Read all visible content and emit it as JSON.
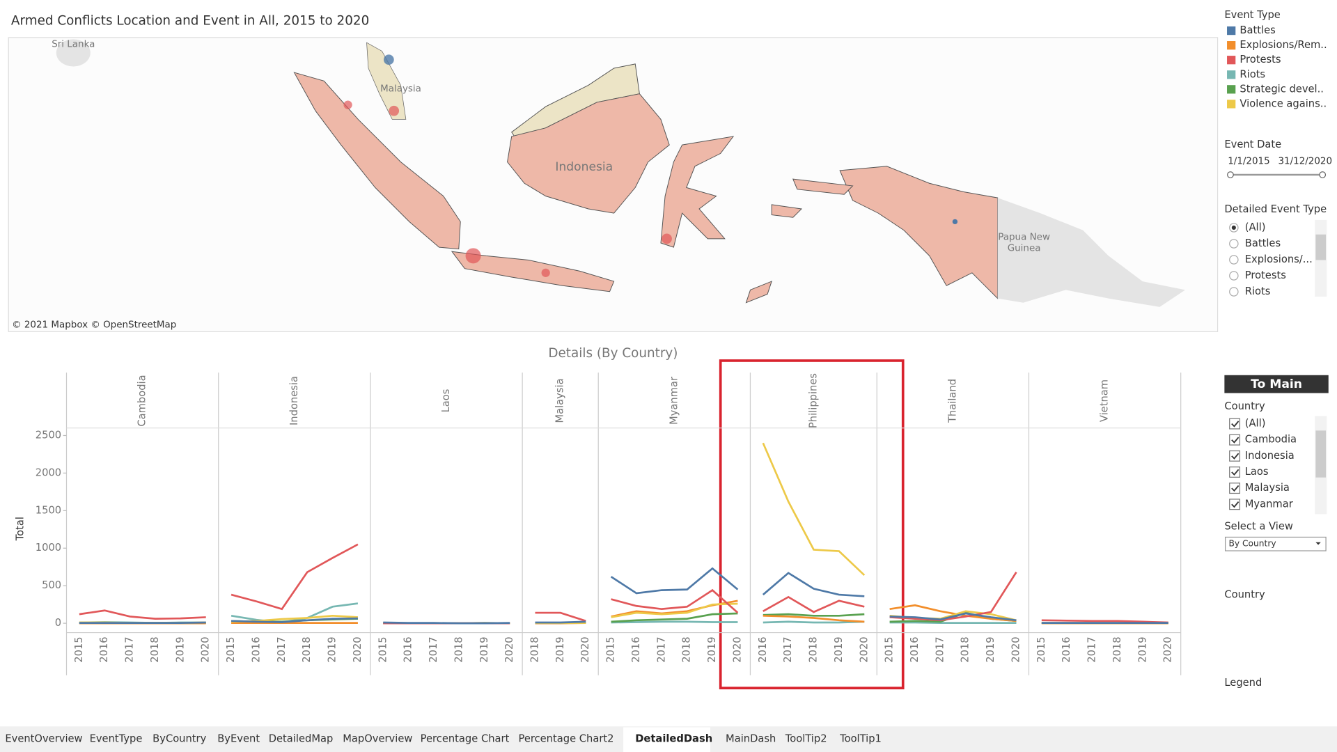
{
  "title": "Armed Conflicts Location and Event in All, 2015 to 2020",
  "map": {
    "labels": [
      {
        "lines": [
          "Sri Lanka"
        ]
      },
      {
        "lines": [
          "Malaysia"
        ]
      },
      {
        "lines": [
          "Indonesia"
        ]
      },
      {
        "lines": [
          "Papua New",
          "Guinea"
        ]
      }
    ],
    "attribution": "© 2021 Mapbox © OpenStreetMap"
  },
  "event_date": {
    "title": "Event Date",
    "start": "1/1/2015",
    "end": "31/12/2020"
  },
  "detailed_event_type": {
    "title": "Detailed Event Type",
    "options": [
      "(All)",
      "Battles",
      "Explosions/...",
      "Protests",
      "Riots"
    ],
    "selected": 0
  },
  "button": "To Main",
  "country_filter": {
    "title": "Country",
    "options": [
      "(All)",
      "Cambodia",
      "Indonesia",
      "Laos",
      "Malaysia",
      "Myanmar"
    ]
  },
  "select_view": {
    "title": "Select a View",
    "value": "By Country"
  },
  "country_label": "Country",
  "legend_label": "Legend",
  "tabs": [
    "EventOverview",
    "EventType",
    "ByCountry",
    "ByEvent",
    "DetailedMap",
    "MapOverview",
    "Percentage Chart",
    "Percentage Chart2",
    "DetailedDash",
    "MainDash",
    "ToolTip2",
    "ToolTip1"
  ],
  "active_tab": 8,
  "chart_data": {
    "type": "line",
    "title": "Details (By Country)",
    "y_label": "Total",
    "ylim": [
      -125,
      2600
    ],
    "yticks": [
      0,
      500,
      1000,
      1500,
      2000,
      2500
    ],
    "legend": {
      "title": "Event Type",
      "items": [
        {
          "name": "Battles",
          "color": "#4e79a7"
        },
        {
          "name": "Explosions/Rem..",
          "color": "#f28e2b"
        },
        {
          "name": "Protests",
          "color": "#e15759"
        },
        {
          "name": "Riots",
          "color": "#76b7b2"
        },
        {
          "name": "Strategic devel..",
          "color": "#59a14f"
        },
        {
          "name": "Violence agains..",
          "color": "#edc948"
        }
      ]
    },
    "panels": [
      {
        "country": "Cambodia",
        "x": [
          2015,
          2016,
          2017,
          2018,
          2019,
          2020
        ],
        "series": [
          {
            "values": [
              5,
              5,
              5,
              5,
              5,
              10
            ]
          },
          {
            "values": [
              0,
              0,
              0,
              0,
              0,
              0
            ]
          },
          {
            "values": [
              120,
              170,
              90,
              60,
              65,
              80
            ]
          },
          {
            "values": [
              10,
              15,
              10,
              5,
              10,
              10
            ]
          },
          {
            "values": [
              5,
              5,
              5,
              5,
              5,
              5
            ]
          },
          {
            "values": [
              10,
              10,
              5,
              5,
              5,
              10
            ]
          }
        ]
      },
      {
        "country": "Indonesia",
        "x": [
          2015,
          2016,
          2017,
          2018,
          2019,
          2020
        ],
        "series": [
          {
            "values": [
              30,
              20,
              15,
              40,
              60,
              65
            ]
          },
          {
            "values": [
              5,
              5,
              5,
              5,
              5,
              5
            ]
          },
          {
            "values": [
              380,
              290,
              190,
              680,
              870,
              1050
            ]
          },
          {
            "values": [
              100,
              45,
              10,
              70,
              220,
              265
            ]
          },
          {
            "values": [
              30,
              20,
              20,
              40,
              50,
              60
            ]
          },
          {
            "values": [
              20,
              30,
              55,
              70,
              100,
              80
            ]
          }
        ]
      },
      {
        "country": "Laos",
        "x": [
          2015,
          2016,
          2017,
          2018,
          2019,
          2020
        ],
        "series": [
          {
            "values": [
              10,
              5,
              5,
              0,
              0,
              5
            ]
          },
          {
            "values": [
              0,
              0,
              0,
              0,
              0,
              0
            ]
          },
          {
            "values": [
              0,
              0,
              0,
              0,
              0,
              0
            ]
          },
          {
            "values": [
              0,
              0,
              0,
              0,
              0,
              0
            ]
          },
          {
            "values": [
              0,
              0,
              0,
              0,
              5,
              0
            ]
          },
          {
            "values": [
              0,
              0,
              0,
              0,
              0,
              0
            ]
          }
        ]
      },
      {
        "country": "Malaysia",
        "x": [
          2018,
          2019,
          2020
        ],
        "series": [
          {
            "values": [
              10,
              10,
              20
            ]
          },
          {
            "values": [
              0,
              0,
              5
            ]
          },
          {
            "values": [
              140,
              140,
              30
            ]
          },
          {
            "values": [
              5,
              5,
              5
            ]
          },
          {
            "values": [
              5,
              5,
              10
            ]
          },
          {
            "values": [
              5,
              5,
              5
            ]
          }
        ]
      },
      {
        "country": "Myanmar",
        "x": [
          2015,
          2016,
          2017,
          2018,
          2019,
          2020
        ],
        "series": [
          {
            "values": [
              620,
              400,
              440,
              450,
              730,
              450
            ]
          },
          {
            "values": [
              90,
              160,
              130,
              160,
              240,
              300
            ]
          },
          {
            "values": [
              320,
              230,
              190,
              220,
              440,
              140
            ]
          },
          {
            "values": [
              10,
              15,
              20,
              20,
              15,
              15
            ]
          },
          {
            "values": [
              20,
              40,
              50,
              60,
              120,
              130
            ]
          },
          {
            "values": [
              80,
              140,
              120,
              140,
              250,
              260
            ]
          }
        ]
      },
      {
        "country": "Philippines",
        "x": [
          2016,
          2017,
          2018,
          2019,
          2020
        ],
        "series": [
          {
            "values": [
              380,
              670,
              460,
              380,
              360
            ]
          },
          {
            "values": [
              100,
              90,
              70,
              40,
              20
            ]
          },
          {
            "values": [
              160,
              350,
              150,
              300,
              220
            ]
          },
          {
            "values": [
              10,
              20,
              10,
              10,
              20
            ]
          },
          {
            "values": [
              110,
              120,
              100,
              100,
              120
            ]
          },
          {
            "values": [
              2400,
              1620,
              980,
              960,
              640
            ]
          }
        ]
      },
      {
        "country": "Thailand",
        "x": [
          2015,
          2016,
          2017,
          2018,
          2019,
          2020
        ],
        "series": [
          {
            "values": [
              90,
              80,
              50,
              130,
              80,
              40
            ]
          },
          {
            "values": [
              190,
              240,
              160,
              100,
              60,
              30
            ]
          },
          {
            "values": [
              80,
              60,
              40,
              90,
              150,
              680
            ]
          },
          {
            "values": [
              10,
              10,
              5,
              5,
              5,
              5
            ]
          },
          {
            "values": [
              20,
              30,
              20,
              140,
              60,
              30
            ]
          },
          {
            "values": [
              100,
              70,
              60,
              160,
              120,
              40
            ]
          }
        ]
      },
      {
        "country": "Vietnam",
        "x": [
          2015,
          2016,
          2017,
          2018,
          2019,
          2020
        ],
        "series": [
          {
            "values": [
              5,
              5,
              5,
              5,
              5,
              5
            ]
          },
          {
            "values": [
              0,
              0,
              0,
              0,
              0,
              0
            ]
          },
          {
            "values": [
              40,
              35,
              30,
              30,
              20,
              10
            ]
          },
          {
            "values": [
              3,
              3,
              3,
              3,
              3,
              3
            ]
          },
          {
            "values": [
              3,
              3,
              3,
              3,
              3,
              3
            ]
          },
          {
            "values": [
              3,
              3,
              3,
              3,
              3,
              3
            ]
          }
        ]
      }
    ]
  }
}
